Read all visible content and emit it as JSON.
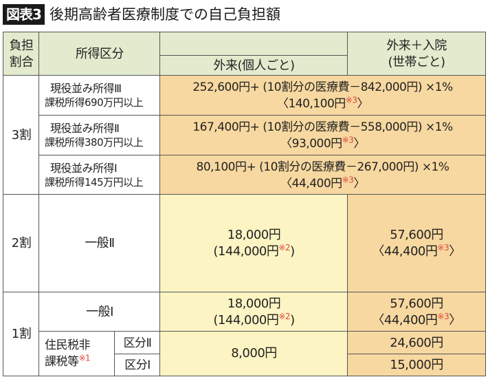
{
  "title": {
    "badge": "図表3",
    "text": "後期高齢者医療制度での自己負担額"
  },
  "header": {
    "ratio": [
      "負担",
      "割合"
    ],
    "income": "所得区分",
    "outpatient": "外来(個人ごと)",
    "combined": [
      "外来＋入院",
      "(世帯ごと)"
    ]
  },
  "colors": {
    "header": "#e2ebcd",
    "orange": "#f7d8a0",
    "yellow": "#fcf4c3",
    "note": "#e0443a"
  },
  "rows": {
    "r3": {
      "ratio": "3割",
      "items": [
        {
          "name": "現役並み所得Ⅲ",
          "sub": "課税所得690万円以上",
          "formula": "252,600円+ (10割分の医療費－842,000円) ×1%",
          "cap": "〈140,100円",
          "note": "※3",
          "close": "〉"
        },
        {
          "name": "現役並み所得Ⅱ",
          "sub": "課税所得380万円以上",
          "formula": "167,400円+ (10割分の医療費－558,000円) ×1%",
          "cap": "〈93,000円",
          "note": "※3",
          "close": "〉"
        },
        {
          "name": "現役並み所得Ⅰ",
          "sub": "課税所得145万円以上",
          "formula": "80,100円+ (10割分の医療費－267,000円) ×1%",
          "cap": "〈44,400円",
          "note": "※3",
          "close": "〉"
        }
      ]
    },
    "r2": {
      "ratio": "2割",
      "name": "一般Ⅱ",
      "out": "18,000円",
      "out_cap": "(144,000円",
      "out_note": "※2",
      "out_close": ")",
      "comb": "57,600円",
      "comb_cap": "〈44,400円",
      "comb_note": "※3",
      "comb_close": "〉"
    },
    "r1": {
      "ratio": "1割",
      "name": "一般Ⅰ",
      "out": "18,000円",
      "out_cap": "(144,000円",
      "out_note": "※2",
      "out_close": ")",
      "comb": "57,600円",
      "comb_cap": "〈44,400円",
      "comb_note": "※3",
      "comb_close": "〉",
      "exempt": [
        "住民税非",
        "課税等"
      ],
      "exempt_note": "※1",
      "k2": "区分Ⅱ",
      "k1": "区分Ⅰ",
      "exempt_out": "8,000円",
      "k2_comb": "24,600円",
      "k1_comb": "15,000円"
    }
  }
}
